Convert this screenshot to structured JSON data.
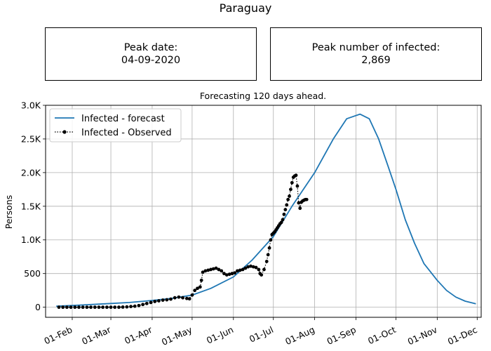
{
  "header": {
    "title": "Paraguay"
  },
  "info_boxes": {
    "peak_date_label": "Peak date:",
    "peak_date_value": "04-09-2020",
    "peak_infected_label": "Peak number of infected:",
    "peak_infected_value": "2,869"
  },
  "chart_data": {
    "type": "line",
    "title": "Forecasting 120 days ahead.",
    "xlabel": "",
    "ylabel": "Persons",
    "ylim": [
      -150,
      3000
    ],
    "x_range": [
      "2020-01-12",
      "2020-12-04"
    ],
    "y_ticks": [
      0,
      500,
      1000,
      1500,
      2000,
      2500,
      3000
    ],
    "y_tick_labels": [
      "0",
      "500",
      "1.0K",
      "1.5K",
      "2.0K",
      "2.5K",
      "3.0K"
    ],
    "x_ticks": [
      "2020-02-01",
      "2020-03-01",
      "2020-04-01",
      "2020-05-01",
      "2020-06-01",
      "2020-07-01",
      "2020-08-01",
      "2020-09-01",
      "2020-10-01",
      "2020-11-01",
      "2020-12-01"
    ],
    "x_tick_labels": [
      "01-Feb",
      "01-Mar",
      "01-Apr",
      "01-May",
      "01-Jun",
      "01-Jul",
      "01-Aug",
      "01-Sep",
      "01-Oct",
      "01-Nov",
      "01-Dec"
    ],
    "grid": true,
    "legend_position": "top-left",
    "series": [
      {
        "name": "Infected - forecast",
        "style": "line",
        "color": "#1f77b4",
        "points": [
          [
            "2020-01-20",
            15
          ],
          [
            "2020-02-01",
            25
          ],
          [
            "2020-02-15",
            40
          ],
          [
            "2020-03-01",
            55
          ],
          [
            "2020-03-15",
            70
          ],
          [
            "2020-04-01",
            100
          ],
          [
            "2020-04-15",
            130
          ],
          [
            "2020-05-01",
            180
          ],
          [
            "2020-05-15",
            280
          ],
          [
            "2020-06-01",
            450
          ],
          [
            "2020-06-15",
            700
          ],
          [
            "2020-07-01",
            1050
          ],
          [
            "2020-07-15",
            1500
          ],
          [
            "2020-08-01",
            2000
          ],
          [
            "2020-08-15",
            2500
          ],
          [
            "2020-08-25",
            2800
          ],
          [
            "2020-09-04",
            2869
          ],
          [
            "2020-09-11",
            2800
          ],
          [
            "2020-09-18",
            2500
          ],
          [
            "2020-09-25",
            2100
          ],
          [
            "2020-10-01",
            1750
          ],
          [
            "2020-10-08",
            1300
          ],
          [
            "2020-10-15",
            950
          ],
          [
            "2020-10-22",
            650
          ],
          [
            "2020-11-01",
            400
          ],
          [
            "2020-11-08",
            250
          ],
          [
            "2020-11-15",
            150
          ],
          [
            "2020-11-22",
            90
          ],
          [
            "2020-11-30",
            50
          ]
        ]
      },
      {
        "name": "Infected - Observed",
        "style": "dotted-markers",
        "color": "#000000",
        "points": [
          [
            "2020-01-22",
            0
          ],
          [
            "2020-01-25",
            0
          ],
          [
            "2020-01-28",
            0
          ],
          [
            "2020-01-31",
            0
          ],
          [
            "2020-02-03",
            0
          ],
          [
            "2020-02-06",
            0
          ],
          [
            "2020-02-09",
            0
          ],
          [
            "2020-02-12",
            0
          ],
          [
            "2020-02-15",
            0
          ],
          [
            "2020-02-18",
            0
          ],
          [
            "2020-02-21",
            0
          ],
          [
            "2020-02-24",
            0
          ],
          [
            "2020-02-27",
            0
          ],
          [
            "2020-03-01",
            0
          ],
          [
            "2020-03-04",
            0
          ],
          [
            "2020-03-07",
            0
          ],
          [
            "2020-03-10",
            2
          ],
          [
            "2020-03-13",
            5
          ],
          [
            "2020-03-16",
            10
          ],
          [
            "2020-03-19",
            15
          ],
          [
            "2020-03-22",
            25
          ],
          [
            "2020-03-25",
            40
          ],
          [
            "2020-03-28",
            55
          ],
          [
            "2020-03-31",
            70
          ],
          [
            "2020-04-03",
            85
          ],
          [
            "2020-04-06",
            95
          ],
          [
            "2020-04-09",
            105
          ],
          [
            "2020-04-12",
            110
          ],
          [
            "2020-04-15",
            120
          ],
          [
            "2020-04-18",
            140
          ],
          [
            "2020-04-21",
            150
          ],
          [
            "2020-04-24",
            140
          ],
          [
            "2020-04-27",
            130
          ],
          [
            "2020-04-29",
            125
          ],
          [
            "2020-05-01",
            180
          ],
          [
            "2020-05-03",
            250
          ],
          [
            "2020-05-05",
            280
          ],
          [
            "2020-05-07",
            300
          ],
          [
            "2020-05-08",
            400
          ],
          [
            "2020-05-09",
            520
          ],
          [
            "2020-05-11",
            540
          ],
          [
            "2020-05-13",
            550
          ],
          [
            "2020-05-15",
            560
          ],
          [
            "2020-05-17",
            570
          ],
          [
            "2020-05-19",
            580
          ],
          [
            "2020-05-21",
            560
          ],
          [
            "2020-05-23",
            540
          ],
          [
            "2020-05-25",
            500
          ],
          [
            "2020-05-27",
            480
          ],
          [
            "2020-05-29",
            490
          ],
          [
            "2020-05-31",
            500
          ],
          [
            "2020-06-02",
            510
          ],
          [
            "2020-06-04",
            540
          ],
          [
            "2020-06-06",
            550
          ],
          [
            "2020-06-08",
            560
          ],
          [
            "2020-06-10",
            580
          ],
          [
            "2020-06-12",
            600
          ],
          [
            "2020-06-14",
            610
          ],
          [
            "2020-06-16",
            600
          ],
          [
            "2020-06-18",
            590
          ],
          [
            "2020-06-20",
            560
          ],
          [
            "2020-06-21",
            500
          ],
          [
            "2020-06-22",
            480
          ],
          [
            "2020-06-24",
            560
          ],
          [
            "2020-06-26",
            680
          ],
          [
            "2020-06-27",
            780
          ],
          [
            "2020-06-28",
            880
          ],
          [
            "2020-06-29",
            1000
          ],
          [
            "2020-06-30",
            1080
          ],
          [
            "2020-07-01",
            1100
          ],
          [
            "2020-07-02",
            1120
          ],
          [
            "2020-07-03",
            1150
          ],
          [
            "2020-07-04",
            1180
          ],
          [
            "2020-07-05",
            1210
          ],
          [
            "2020-07-06",
            1240
          ],
          [
            "2020-07-07",
            1260
          ],
          [
            "2020-07-08",
            1300
          ],
          [
            "2020-07-09",
            1380
          ],
          [
            "2020-07-10",
            1450
          ],
          [
            "2020-07-11",
            1520
          ],
          [
            "2020-07-12",
            1600
          ],
          [
            "2020-07-13",
            1650
          ],
          [
            "2020-07-14",
            1750
          ],
          [
            "2020-07-15",
            1850
          ],
          [
            "2020-07-16",
            1930
          ],
          [
            "2020-07-17",
            1950
          ],
          [
            "2020-07-18",
            1960
          ],
          [
            "2020-07-19",
            1800
          ],
          [
            "2020-07-20",
            1550
          ],
          [
            "2020-07-21",
            1470
          ],
          [
            "2020-07-22",
            1560
          ],
          [
            "2020-07-23",
            1580
          ],
          [
            "2020-07-24",
            1590
          ],
          [
            "2020-07-25",
            1600
          ],
          [
            "2020-07-26",
            1600
          ]
        ]
      }
    ]
  }
}
